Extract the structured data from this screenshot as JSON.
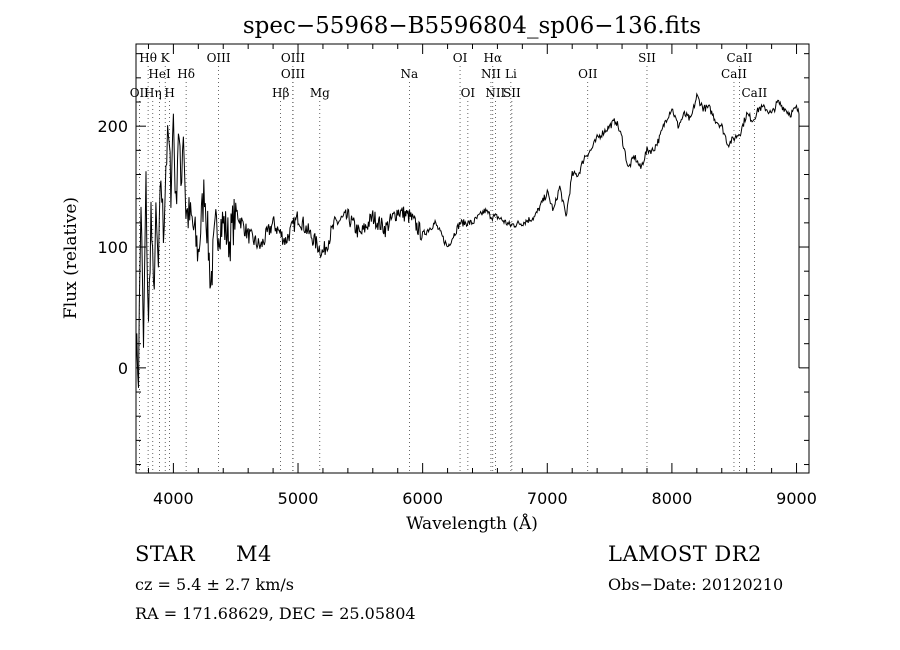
{
  "chart_data": {
    "type": "line",
    "title": "spec−55968−B5596804_sp06−136.fits",
    "xlabel": "Wavelength (Å)",
    "ylabel": "Flux (relative)",
    "xlim": [
      3700,
      9100
    ],
    "ylim": [
      -87,
      268
    ],
    "xticks": [
      4000,
      5000,
      6000,
      7000,
      8000,
      9000
    ],
    "yticks": [
      0,
      100,
      200
    ],
    "grid": false,
    "series": [
      {
        "x": [
          3700,
          3720,
          3740,
          3760,
          3780,
          3800,
          3820,
          3840,
          3860,
          3880,
          3900,
          3920,
          3940,
          3960,
          3980,
          4000,
          4020,
          4040,
          4060,
          4080,
          4100,
          4150,
          4200,
          4250,
          4300,
          4340,
          4400,
          4450,
          4500,
          4600,
          4700,
          4800,
          4900,
          5000,
          5100,
          5200,
          5300,
          5400,
          5500,
          5600,
          5700,
          5800,
          5900,
          6000,
          6100,
          6200,
          6300,
          6400,
          6500,
          6560,
          6600,
          6700,
          6800,
          6900,
          7000,
          7050,
          7100,
          7150,
          7200,
          7250,
          7300,
          7350,
          7400,
          7450,
          7500,
          7550,
          7600,
          7650,
          7700,
          7750,
          7800,
          7850,
          7900,
          7950,
          8000,
          8050,
          8100,
          8150,
          8200,
          8250,
          8300,
          8350,
          8400,
          8450,
          8500,
          8550,
          8600,
          8650,
          8700,
          8750,
          8800,
          8850,
          8900,
          8950,
          9000,
          9020
        ],
        "y": [
          20,
          -5,
          140,
          15,
          150,
          30,
          130,
          60,
          120,
          80,
          160,
          110,
          170,
          190,
          150,
          210,
          130,
          200,
          150,
          200,
          130,
          120,
          95,
          150,
          70,
          115,
          120,
          105,
          130,
          110,
          100,
          120,
          105,
          125,
          110,
          95,
          120,
          125,
          110,
          125,
          115,
          130,
          125,
          110,
          120,
          100,
          120,
          120,
          130,
          125,
          125,
          118,
          120,
          125,
          145,
          130,
          150,
          125,
          160,
          160,
          175,
          180,
          190,
          195,
          200,
          205,
          190,
          165,
          175,
          165,
          180,
          180,
          190,
          205,
          215,
          200,
          210,
          205,
          225,
          215,
          215,
          205,
          200,
          185,
          190,
          195,
          210,
          205,
          215,
          215,
          210,
          220,
          215,
          210,
          215,
          210
        ]
      }
    ],
    "annotations": [
      {
        "label": "Hθ",
        "x": 3797,
        "row": 1
      },
      {
        "label": "K",
        "x": 3934,
        "row": 1
      },
      {
        "label": "OIII",
        "x": 4363,
        "row": 1
      },
      {
        "label": "OIII",
        "x": 4959,
        "row": 1
      },
      {
        "label": "OI",
        "x": 6300,
        "row": 1
      },
      {
        "label": "Hα",
        "x": 6563,
        "row": 1
      },
      {
        "label": "SII",
        "x": 7800,
        "row": 1
      },
      {
        "label": "CaII",
        "x": 8542,
        "row": 1
      },
      {
        "label": "HeI",
        "x": 3889,
        "row": 2
      },
      {
        "label": "Hδ",
        "x": 4102,
        "row": 2
      },
      {
        "label": "OIII",
        "x": 4959,
        "row": 2
      },
      {
        "label": "Na",
        "x": 5893,
        "row": 2
      },
      {
        "label": "NII",
        "x": 6548,
        "row": 2
      },
      {
        "label": "Li",
        "x": 6708,
        "row": 2
      },
      {
        "label": "OII",
        "x": 7325,
        "row": 2
      },
      {
        "label": "CaII",
        "x": 8498,
        "row": 2
      },
      {
        "label": "OII",
        "x": 3727,
        "row": 3
      },
      {
        "label": "Hη",
        "x": 3835,
        "row": 3
      },
      {
        "label": "H",
        "x": 3970,
        "row": 3
      },
      {
        "label": "Hβ",
        "x": 4861,
        "row": 3
      },
      {
        "label": "Mg",
        "x": 5175,
        "row": 3
      },
      {
        "label": "OI",
        "x": 6363,
        "row": 3
      },
      {
        "label": "NII",
        "x": 6583,
        "row": 3
      },
      {
        "label": "SII",
        "x": 6716,
        "row": 3
      },
      {
        "label": "CaII",
        "x": 8662,
        "row": 3
      }
    ]
  },
  "info": {
    "object_class": "STAR",
    "subclass": "M4",
    "cz": "cz = 5.4 ± 2.7 km/s",
    "coords": "RA = 171.68629, DEC =  25.05804",
    "survey": "LAMOST DR2",
    "obs_date": "Obs−Date: 20120210"
  }
}
